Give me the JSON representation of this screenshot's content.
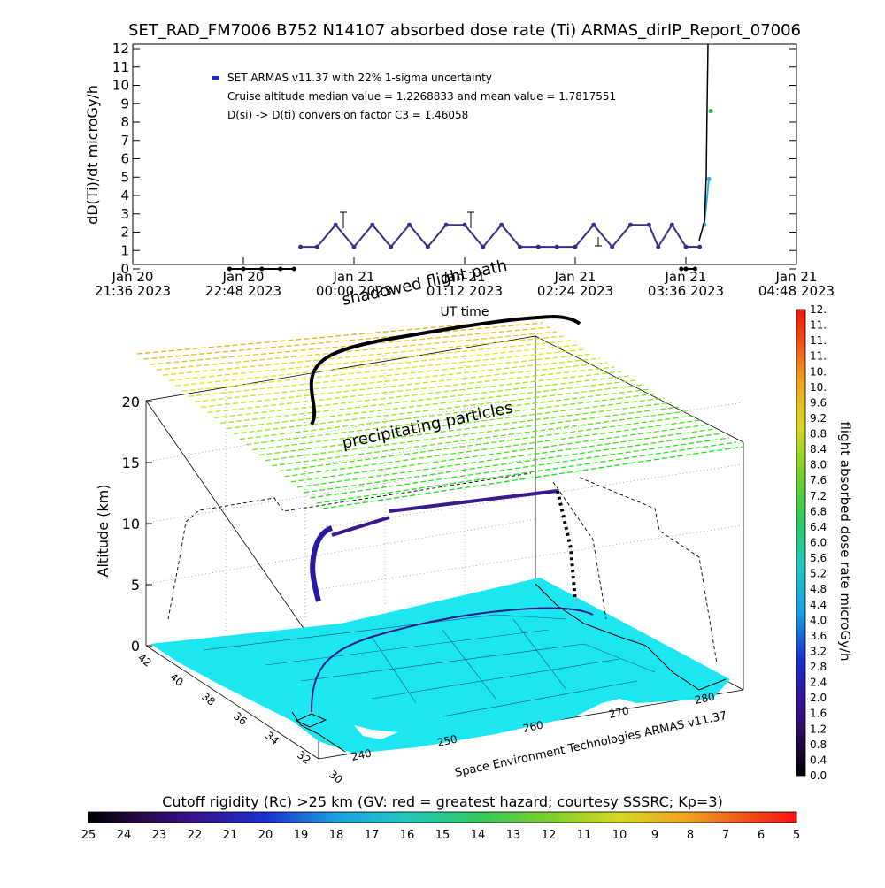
{
  "chart_data": [
    {
      "type": "scatter",
      "title": "SET_RAD_FM7006  B752 N14107 absorbed dose rate (Ti) ARMAS_dirIP_Report_07006",
      "xlabel": "UT time",
      "ylabel": "dD(Ti)/dt microGy/h",
      "ylim": [
        0,
        12
      ],
      "y_ticks": [
        "0",
        "1",
        "2",
        "3",
        "4",
        "5",
        "6",
        "7",
        "8",
        "9",
        "10",
        "11",
        "12"
      ],
      "x_ticks": [
        {
          "day": "Jan 20",
          "time": "21:36 2023"
        },
        {
          "day": "Jan 20",
          "time": "22:48 2023"
        },
        {
          "day": "Jan 21",
          "time": "00:00 2023"
        },
        {
          "day": "Jan 21",
          "time": "01:12 2023"
        },
        {
          "day": "Jan 21",
          "time": "02:24 2023"
        },
        {
          "day": "Jan 21",
          "time": "03:36 2023"
        },
        {
          "day": "Jan 21",
          "time": "04:48 2023"
        }
      ],
      "annotations": [
        "SET ARMAS v11.37 with 22% 1-sigma uncertainty",
        "Cruise altitude median value = 1.2268833 and mean value = 1.7817551",
        "D(si) -> D(ti) conversion factor C3 = 1.46058"
      ],
      "series": [
        {
          "x_hours_from_2136": [
            1.05,
            1.2,
            1.4,
            1.6,
            1.75
          ],
          "y": [
            0,
            0,
            0,
            0,
            0
          ],
          "color": "#000000"
        },
        {
          "x_hours_from_2136": [
            1.82,
            2.0,
            2.2,
            2.4,
            2.6,
            2.8,
            3.0,
            3.2,
            3.4,
            3.6,
            3.8,
            4.0,
            4.2,
            4.4,
            4.6,
            4.8,
            5.0,
            5.2,
            5.4,
            5.6,
            5.7,
            5.85,
            6.0,
            6.15
          ],
          "y": [
            1.2,
            1.2,
            2.4,
            1.2,
            2.4,
            1.2,
            2.4,
            1.2,
            2.4,
            2.4,
            1.2,
            2.4,
            1.2,
            1.2,
            1.2,
            1.2,
            2.4,
            1.2,
            2.4,
            2.4,
            1.2,
            2.4,
            1.2,
            1.2
          ],
          "color": "#3f2a8c"
        },
        {
          "x_hours_from_2136": [
            5.95,
            6.0,
            6.1
          ],
          "y": [
            0,
            0,
            0
          ],
          "color": "#000000"
        },
        {
          "x_hours_from_2136": [
            6.2,
            6.25
          ],
          "y": [
            2.4,
            4.9
          ],
          "color": "#2ab0d8"
        },
        {
          "x_hours_from_2136": [
            6.27
          ],
          "y": [
            8.6
          ],
          "color": "#3ab550"
        }
      ],
      "colorbar": {
        "label": "flight absorbed dose rate microGy/h",
        "ticks": [
          "0.0",
          "0.4",
          "0.8",
          "1.2",
          "1.6",
          "2.0",
          "2.4",
          "2.8",
          "3.2",
          "3.6",
          "4.0",
          "4.4",
          "4.8",
          "5.2",
          "5.6",
          "6.0",
          "6.4",
          "6.8",
          "7.2",
          "7.6",
          "8.0",
          "8.4",
          "8.8",
          "9.2",
          "9.6",
          "10.",
          "10.",
          "11.",
          "11.",
          "11.",
          "12."
        ]
      }
    },
    {
      "type": "scatter",
      "zlabel": "Altitude (km)",
      "z_ticks": [
        "0",
        "5",
        "10",
        "15",
        "20"
      ],
      "lat_ticks": [
        "42",
        "40",
        "38",
        "36",
        "34",
        "32",
        "30"
      ],
      "lon_ticks": [
        "240",
        "250",
        "260",
        "270",
        "280"
      ],
      "labels": {
        "shadow": "shadowed flight path",
        "precip": "precipitating particles",
        "credit": "Space Environment Technologies ARMAS v11.37"
      },
      "colorbar": {
        "label": "Cutoff rigidity (Rc) >25 km (GV: red = greatest hazard; courtesy SSSRC; Kp=3)",
        "ticks": [
          "25",
          "24",
          "23",
          "22",
          "21",
          "20",
          "19",
          "18",
          "17",
          "16",
          "15",
          "14",
          "13",
          "12",
          "11",
          "10",
          "9",
          "8",
          "7",
          "6",
          "5"
        ]
      }
    }
  ]
}
